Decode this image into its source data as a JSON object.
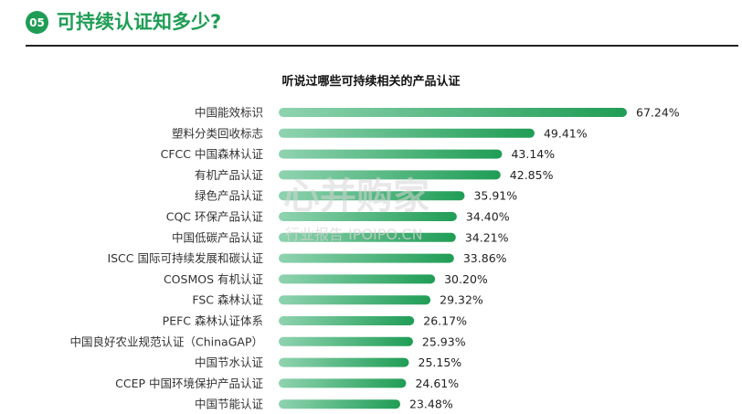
{
  "header": {
    "badge": "05",
    "title": "可持续认证知多少?"
  },
  "watermark": {
    "logo_text": "心并购家",
    "sub_text": "行业报告 IPOIPO.CN"
  },
  "colors": {
    "accent": "#1f9d55",
    "bar_start": "#8fd3b0",
    "bar_end": "#1f9d55"
  },
  "chart_data": {
    "type": "bar",
    "orientation": "horizontal",
    "title": "听说过哪些可持续相关的产品认证",
    "xlabel": "",
    "ylabel": "",
    "xlim": [
      0,
      70
    ],
    "grid": false,
    "legend": "none",
    "value_suffix": "%",
    "categories": [
      "中国能效标识",
      "塑料分类回收标志",
      "CFCC 中国森林认证",
      "有机产品认证",
      "绿色产品认证",
      "CQC 环保产品认证",
      "中国低碳产品认证",
      "ISCC 国际可持续发展和碳认证",
      "COSMOS 有机认证",
      "FSC 森林认证",
      "PEFC 森林认证体系",
      "中国良好农业规范认证（ChinaGAP）",
      "中国节水认证",
      "CCEP 中国环境保护产品认证",
      "中国节能认证"
    ],
    "values": [
      67.24,
      49.41,
      43.14,
      42.85,
      35.91,
      34.4,
      34.21,
      33.86,
      30.2,
      29.32,
      26.17,
      25.93,
      25.15,
      24.61,
      23.48
    ],
    "labels": [
      "67.24%",
      "49.41%",
      "43.14%",
      "42.85%",
      "35.91%",
      "34.40%",
      "34.21%",
      "33.86%",
      "30.20%",
      "29.32%",
      "26.17%",
      "25.93%",
      "25.15%",
      "24.61%",
      "23.48%"
    ]
  }
}
